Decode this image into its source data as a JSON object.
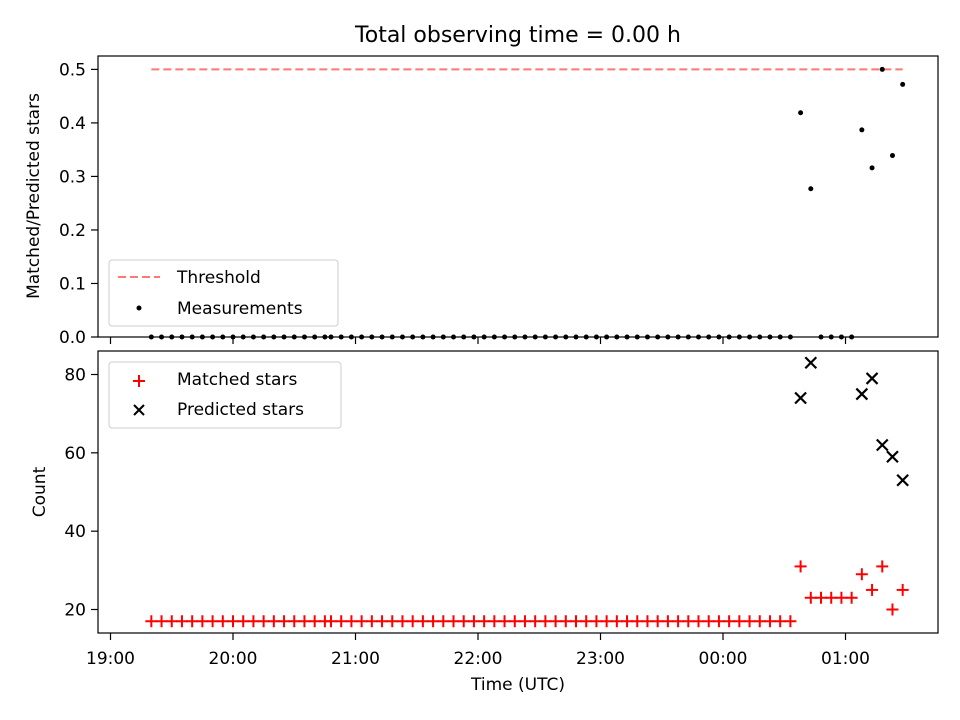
{
  "title": "Total observing time = 0.00 h",
  "chart_data": [
    {
      "type": "scatter",
      "panel": "top",
      "ylabel": "Matched/Predicted stars",
      "ylim": [
        0,
        0.525
      ],
      "yticks": [
        "0.0",
        "0.1",
        "0.2",
        "0.3",
        "0.4",
        "0.5"
      ],
      "legend": {
        "placement": "lower-left",
        "entries": [
          "Threshold",
          "Measurements"
        ]
      },
      "threshold": {
        "name": "Threshold",
        "y": 0.5,
        "x_start": "19:20",
        "x_end": "01:28",
        "color": "#ff7777",
        "style": "dashed"
      },
      "measurements": {
        "name": "Measurements",
        "color": "#000000",
        "zero_run_1": [
          "19:20",
          "19:25",
          "19:30",
          "19:35",
          "19:40",
          "19:45",
          "19:50",
          "19:55",
          "20:00",
          "20:05",
          "20:10",
          "20:15",
          "20:20",
          "20:25",
          "20:30",
          "20:35",
          "20:40",
          "20:45"
        ],
        "zero_run_2": [
          "20:48",
          "20:53",
          "20:58",
          "21:03",
          "21:08",
          "21:13",
          "21:18",
          "21:23",
          "21:28",
          "21:33",
          "21:38",
          "21:43",
          "21:48",
          "21:53",
          "21:58",
          "22:03",
          "22:08",
          "22:13",
          "22:18",
          "22:23",
          "22:28",
          "22:33",
          "22:38",
          "22:43",
          "22:48",
          "22:53",
          "22:58",
          "23:03",
          "23:08",
          "23:13",
          "23:18",
          "23:23",
          "23:28",
          "23:33",
          "23:38",
          "23:43",
          "23:48",
          "23:53",
          "23:58",
          "00:03",
          "00:08",
          "00:13",
          "00:18",
          "00:23",
          "00:28",
          "00:33"
        ],
        "zero_run_3": [
          "00:48",
          "00:53",
          "00:58",
          "01:03"
        ],
        "nonzero": [
          {
            "x": "00:38",
            "y": 0.419
          },
          {
            "x": "00:43",
            "y": 0.277
          },
          {
            "x": "01:08",
            "y": 0.387
          },
          {
            "x": "01:13",
            "y": 0.316
          },
          {
            "x": "01:18",
            "y": 0.5
          },
          {
            "x": "01:23",
            "y": 0.339
          },
          {
            "x": "01:28",
            "y": 0.472
          }
        ]
      }
    },
    {
      "type": "scatter",
      "panel": "bottom",
      "ylabel": "Count",
      "xlabel": "Time (UTC)",
      "ylim": [
        14,
        86
      ],
      "yticks": [
        "20",
        "40",
        "60",
        "80"
      ],
      "xticks": [
        "19:00",
        "20:00",
        "21:00",
        "22:00",
        "23:00",
        "00:00",
        "01:00"
      ],
      "legend": {
        "placement": "upper-left",
        "entries": [
          "Matched stars",
          "Predicted stars"
        ]
      },
      "matched": {
        "name": "Matched stars",
        "color": "#ff0000",
        "marker": "+",
        "constant_value": 17,
        "constant_run_1": [
          "19:20",
          "19:25",
          "19:30",
          "19:35",
          "19:40",
          "19:45",
          "19:50",
          "19:55",
          "20:00",
          "20:05",
          "20:10",
          "20:15",
          "20:20",
          "20:25",
          "20:30",
          "20:35",
          "20:40",
          "20:45"
        ],
        "constant_run_2": [
          "20:48",
          "20:53",
          "20:58",
          "21:03",
          "21:08",
          "21:13",
          "21:18",
          "21:23",
          "21:28",
          "21:33",
          "21:38",
          "21:43",
          "21:48",
          "21:53",
          "21:58",
          "22:03",
          "22:08",
          "22:13",
          "22:18",
          "22:23",
          "22:28",
          "22:33",
          "22:38",
          "22:43",
          "22:48",
          "22:53",
          "22:58",
          "23:03",
          "23:08",
          "23:13",
          "23:18",
          "23:23",
          "23:28",
          "23:33"
        ],
        "points": [
          {
            "x": "23:38",
            "y": 17
          },
          {
            "x": "23:43",
            "y": 17
          },
          {
            "x": "23:48",
            "y": 17
          },
          {
            "x": "23:53",
            "y": 17
          },
          {
            "x": "23:58",
            "y": 17
          },
          {
            "x": "00:03",
            "y": 17
          },
          {
            "x": "00:08",
            "y": 17
          },
          {
            "x": "00:13",
            "y": 17
          },
          {
            "x": "00:18",
            "y": 17
          },
          {
            "x": "00:23",
            "y": 17
          },
          {
            "x": "00:28",
            "y": 17
          },
          {
            "x": "00:33",
            "y": 17
          },
          {
            "x": "00:38",
            "y": 31
          },
          {
            "x": "00:43",
            "y": 23
          },
          {
            "x": "00:48",
            "y": 23
          },
          {
            "x": "00:53",
            "y": 23
          },
          {
            "x": "00:58",
            "y": 23
          },
          {
            "x": "01:03",
            "y": 23
          },
          {
            "x": "01:08",
            "y": 29
          },
          {
            "x": "01:13",
            "y": 25
          },
          {
            "x": "01:18",
            "y": 31
          },
          {
            "x": "01:23",
            "y": 20
          },
          {
            "x": "01:28",
            "y": 25
          }
        ]
      },
      "predicted": {
        "name": "Predicted stars",
        "color": "#000000",
        "marker": "x",
        "points": [
          {
            "x": "00:38",
            "y": 74
          },
          {
            "x": "00:43",
            "y": 83
          },
          {
            "x": "01:08",
            "y": 75
          },
          {
            "x": "01:13",
            "y": 79
          },
          {
            "x": "01:18",
            "y": 62
          },
          {
            "x": "01:23",
            "y": 59
          },
          {
            "x": "01:28",
            "y": 53
          }
        ]
      }
    }
  ]
}
